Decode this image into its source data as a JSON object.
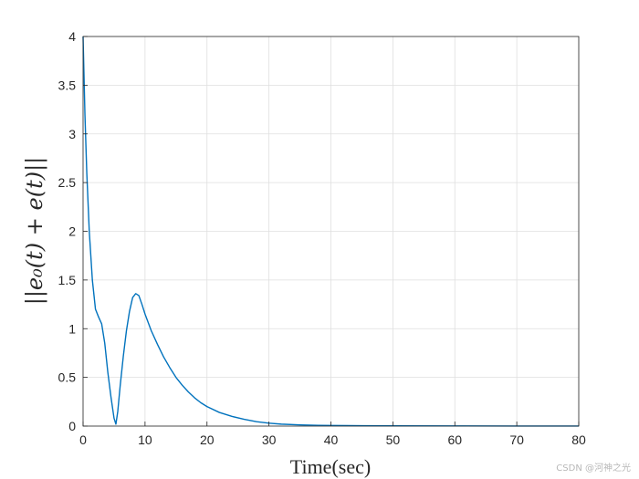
{
  "chart_data": {
    "type": "line",
    "xlabel": "Time(sec)",
    "ylabel": "||e₀(t) + e(t)||",
    "xlim": [
      0,
      80
    ],
    "ylim": [
      0,
      4
    ],
    "xticks": [
      0,
      10,
      20,
      30,
      40,
      50,
      60,
      70,
      80
    ],
    "yticks": [
      0,
      0.5,
      1,
      1.5,
      2,
      2.5,
      3,
      3.5,
      4
    ],
    "xtick_labels": [
      "0",
      "10",
      "20",
      "30",
      "40",
      "50",
      "60",
      "70",
      "80"
    ],
    "ytick_labels": [
      "0",
      "0.5",
      "1",
      "1.5",
      "2",
      "2.5",
      "3",
      "3.5",
      "4"
    ],
    "grid": true,
    "line_color": "#0072BD",
    "series": [
      {
        "x": [
          0,
          0.3,
          0.6,
          1.0,
          1.5,
          2.0,
          2.5,
          3.0,
          3.5,
          4.0,
          4.5,
          5.0,
          5.3,
          5.6,
          6.0,
          6.5,
          7.0,
          7.5,
          8.0,
          8.5,
          9.0,
          9.5,
          10,
          11,
          12,
          13,
          14,
          15,
          16,
          17,
          18,
          19,
          20,
          22,
          24,
          26,
          28,
          30,
          32,
          35,
          38,
          40,
          45,
          50,
          60,
          70,
          80
        ],
        "y": [
          4.0,
          3.2,
          2.6,
          2.0,
          1.5,
          1.2,
          1.12,
          1.05,
          0.85,
          0.55,
          0.3,
          0.08,
          0.02,
          0.15,
          0.42,
          0.72,
          0.98,
          1.18,
          1.32,
          1.36,
          1.34,
          1.25,
          1.15,
          0.98,
          0.84,
          0.71,
          0.6,
          0.5,
          0.42,
          0.35,
          0.29,
          0.24,
          0.2,
          0.14,
          0.1,
          0.07,
          0.045,
          0.03,
          0.02,
          0.012,
          0.008,
          0.006,
          0.004,
          0.003,
          0.002,
          0.001,
          0.001
        ]
      }
    ]
  },
  "watermark": "CSDN @河神之光"
}
